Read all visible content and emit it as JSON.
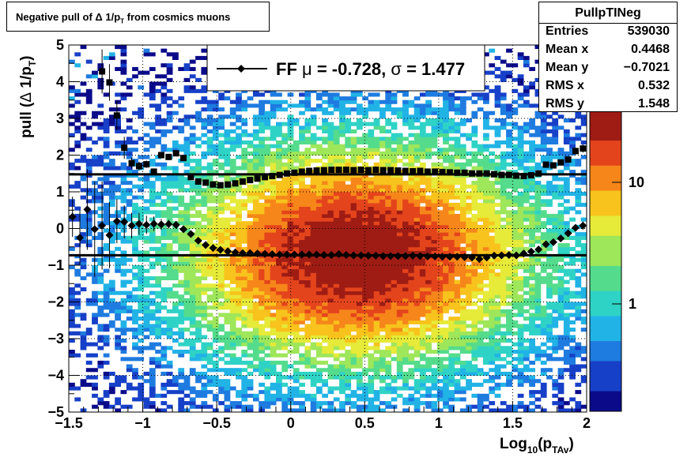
{
  "title": {
    "prefix": "Negative pull of ",
    "delta": "Δ",
    "mid": " 1/p",
    "sub": "T",
    "suffix": " from cosmics muons"
  },
  "stats_box": {
    "name": "PullpTINeg",
    "rows": [
      {
        "key": "Entries",
        "value": "539030"
      },
      {
        "key": "Mean x",
        "value": "0.4468"
      },
      {
        "key": "Mean y",
        "value": "−0.7021"
      },
      {
        "key": "RMS x",
        "value": "0.532"
      },
      {
        "key": "RMS y",
        "value": "1.548"
      }
    ]
  },
  "legend": {
    "label": "FF",
    "mu_symbol": "μ",
    "mu_text": " = -0.728, ",
    "sigma_symbol": "σ",
    "sigma_text": " =   1.477"
  },
  "colors": {
    "palette": [
      "#0b0b8a",
      "#1740c8",
      "#1e7be0",
      "#21b3e6",
      "#2fd3c6",
      "#54dc8c",
      "#9ee65a",
      "#e6ea38",
      "#f8c31c",
      "#f6861a",
      "#e4441c",
      "#9e1c14"
    ],
    "marker": "#000000",
    "line": "#000000"
  },
  "chart_data": {
    "type": "heatmap",
    "xlabel": "Log10(pTAv)",
    "ylabel": "pull (Δ 1/pT)",
    "xlim": [
      -1.5,
      2.0
    ],
    "ylim": [
      -5,
      5
    ],
    "x_ticks": [
      {
        "value": -1.5,
        "label": "−1.5"
      },
      {
        "value": -1.0,
        "label": "−1"
      },
      {
        "value": -0.5,
        "label": "−0.5"
      },
      {
        "value": 0.0,
        "label": "0"
      },
      {
        "value": 0.5,
        "label": "0.5"
      },
      {
        "value": 1.0,
        "label": "1"
      },
      {
        "value": 1.5,
        "label": "1.5"
      },
      {
        "value": 2.0,
        "label": "2"
      }
    ],
    "y_ticks": [
      {
        "value": 5,
        "label": "5"
      },
      {
        "value": 4,
        "label": "4"
      },
      {
        "value": 3,
        "label": "3"
      },
      {
        "value": 2,
        "label": "2"
      },
      {
        "value": 1,
        "label": "1"
      },
      {
        "value": 0,
        "label": "0"
      },
      {
        "value": -1,
        "label": "−1"
      },
      {
        "value": -2,
        "label": "−2"
      },
      {
        "value": -3,
        "label": "−3"
      },
      {
        "value": -4,
        "label": "−4"
      },
      {
        "value": -5,
        "label": "−5"
      }
    ],
    "z_scale": "log",
    "z_ticks": [
      {
        "value": 1,
        "label": "1"
      },
      {
        "value": 10,
        "label": "10"
      }
    ],
    "grid": true,
    "density": {
      "mean_x": 0.45,
      "mean_y": -0.7,
      "rms_x": 0.53,
      "rms_y": 1.55
    },
    "hlines": [
      {
        "name": "mu",
        "y": -0.728
      },
      {
        "name": "sigma",
        "y": 1.477
      }
    ],
    "series": [
      {
        "marker": "diamond",
        "x": [
          -1.475,
          -1.425,
          -1.375,
          -1.325,
          -1.275,
          -1.225,
          -1.175,
          -1.125,
          -1.075,
          -1.025,
          -0.975,
          -0.925,
          -0.875,
          -0.825,
          -0.775,
          -0.725,
          -0.675,
          -0.625,
          -0.575,
          -0.525,
          -0.475,
          -0.425,
          -0.375,
          -0.325,
          -0.275,
          -0.225,
          -0.175,
          -0.125,
          -0.075,
          -0.025,
          0.025,
          0.075,
          0.125,
          0.175,
          0.225,
          0.275,
          0.325,
          0.375,
          0.425,
          0.475,
          0.525,
          0.575,
          0.625,
          0.675,
          0.725,
          0.775,
          0.825,
          0.875,
          0.925,
          0.975,
          1.025,
          1.075,
          1.125,
          1.175,
          1.225,
          1.275,
          1.325,
          1.375,
          1.425,
          1.475,
          1.525,
          1.575,
          1.625,
          1.675,
          1.725,
          1.775,
          1.825,
          1.875,
          1.925,
          1.975
        ],
        "y": [
          0.32,
          -0.25,
          0.52,
          -0.02,
          0.08,
          -0.18,
          0.2,
          0.18,
          0.08,
          0.13,
          0.1,
          0.13,
          0.11,
          0.12,
          0.1,
          -0.02,
          -0.15,
          -0.33,
          -0.45,
          -0.53,
          -0.58,
          -0.62,
          -0.65,
          -0.67,
          -0.67,
          -0.68,
          -0.69,
          -0.7,
          -0.71,
          -0.71,
          -0.71,
          -0.71,
          -0.71,
          -0.71,
          -0.72,
          -0.72,
          -0.7,
          -0.72,
          -0.73,
          -0.73,
          -0.74,
          -0.74,
          -0.75,
          -0.75,
          -0.75,
          -0.75,
          -0.74,
          -0.75,
          -0.76,
          -0.76,
          -0.77,
          -0.77,
          -0.77,
          -0.78,
          -0.79,
          -0.83,
          -0.79,
          -0.74,
          -0.73,
          -0.72,
          -0.73,
          -0.68,
          -0.63,
          -0.57,
          -0.43,
          -0.37,
          -0.27,
          -0.13,
          0.02,
          0.08
        ],
        "yerr": [
          0.55,
          0.75,
          1.1,
          1.3,
          1.2,
          0.9,
          0.6,
          0.45,
          0.35,
          0.3,
          0.25,
          0.2,
          0.15,
          0.12,
          0.1,
          0.07,
          0.05,
          0.04,
          0.03,
          0.03,
          0.02,
          0.02,
          0.02,
          0.02,
          0.02,
          0.02,
          0.02,
          0.02,
          0.02,
          0.02,
          0.02,
          0.02,
          0.02,
          0.02,
          0.02,
          0.02,
          0.02,
          0.02,
          0.02,
          0.02,
          0.02,
          0.02,
          0.02,
          0.02,
          0.02,
          0.02,
          0.02,
          0.02,
          0.02,
          0.02,
          0.02,
          0.02,
          0.02,
          0.02,
          0.02,
          0.02,
          0.02,
          0.02,
          0.02,
          0.02,
          0.02,
          0.02,
          0.03,
          0.03,
          0.04,
          0.05,
          0.06,
          0.07,
          0.09,
          0.11
        ]
      },
      {
        "marker": "square",
        "x": [
          -1.275,
          -1.225,
          -1.175,
          -1.125,
          -1.075,
          -1.025,
          -0.975,
          -0.925,
          -0.875,
          -0.825,
          -0.775,
          -0.725,
          -0.675,
          -0.625,
          -0.575,
          -0.525,
          -0.475,
          -0.425,
          -0.375,
          -0.325,
          -0.275,
          -0.225,
          -0.175,
          -0.125,
          -0.075,
          -0.025,
          0.025,
          0.075,
          0.125,
          0.175,
          0.225,
          0.275,
          0.325,
          0.375,
          0.425,
          0.475,
          0.525,
          0.575,
          0.625,
          0.675,
          0.725,
          0.775,
          0.825,
          0.875,
          0.925,
          0.975,
          1.025,
          1.075,
          1.125,
          1.175,
          1.225,
          1.275,
          1.325,
          1.375,
          1.425,
          1.475,
          1.525,
          1.575,
          1.625,
          1.675,
          1.725,
          1.775,
          1.825,
          1.875,
          1.925,
          1.975
        ],
        "y": [
          4.28,
          3.98,
          3.08,
          2.2,
          1.78,
          1.7,
          1.75,
          1.55,
          2.0,
          1.95,
          2.05,
          1.92,
          1.4,
          1.28,
          1.25,
          1.2,
          1.18,
          1.2,
          1.23,
          1.28,
          1.32,
          1.36,
          1.4,
          1.43,
          1.46,
          1.5,
          1.52,
          1.55,
          1.57,
          1.58,
          1.59,
          1.6,
          1.6,
          1.6,
          1.59,
          1.6,
          1.59,
          1.6,
          1.59,
          1.59,
          1.58,
          1.57,
          1.56,
          1.57,
          1.55,
          1.55,
          1.54,
          1.53,
          1.52,
          1.52,
          1.5,
          1.5,
          1.5,
          1.48,
          1.46,
          1.46,
          1.44,
          1.43,
          1.45,
          1.5,
          1.74,
          1.72,
          1.8,
          1.88,
          2.11,
          2.18
        ],
        "yerr": [
          0.6,
          0.5,
          0.4,
          0.3,
          0.15,
          0.12,
          0.1,
          0.08,
          0.07,
          0.06,
          0.05,
          0.04,
          0.03,
          0.03,
          0.02,
          0.02,
          0.02,
          0.02,
          0.02,
          0.02,
          0.02,
          0.02,
          0.02,
          0.02,
          0.02,
          0.02,
          0.02,
          0.02,
          0.02,
          0.02,
          0.02,
          0.02,
          0.02,
          0.02,
          0.02,
          0.02,
          0.02,
          0.02,
          0.02,
          0.02,
          0.02,
          0.02,
          0.02,
          0.02,
          0.02,
          0.02,
          0.02,
          0.02,
          0.02,
          0.02,
          0.02,
          0.02,
          0.02,
          0.02,
          0.02,
          0.02,
          0.02,
          0.02,
          0.03,
          0.03,
          0.04,
          0.05,
          0.06,
          0.07,
          0.09,
          0.11
        ]
      }
    ]
  }
}
